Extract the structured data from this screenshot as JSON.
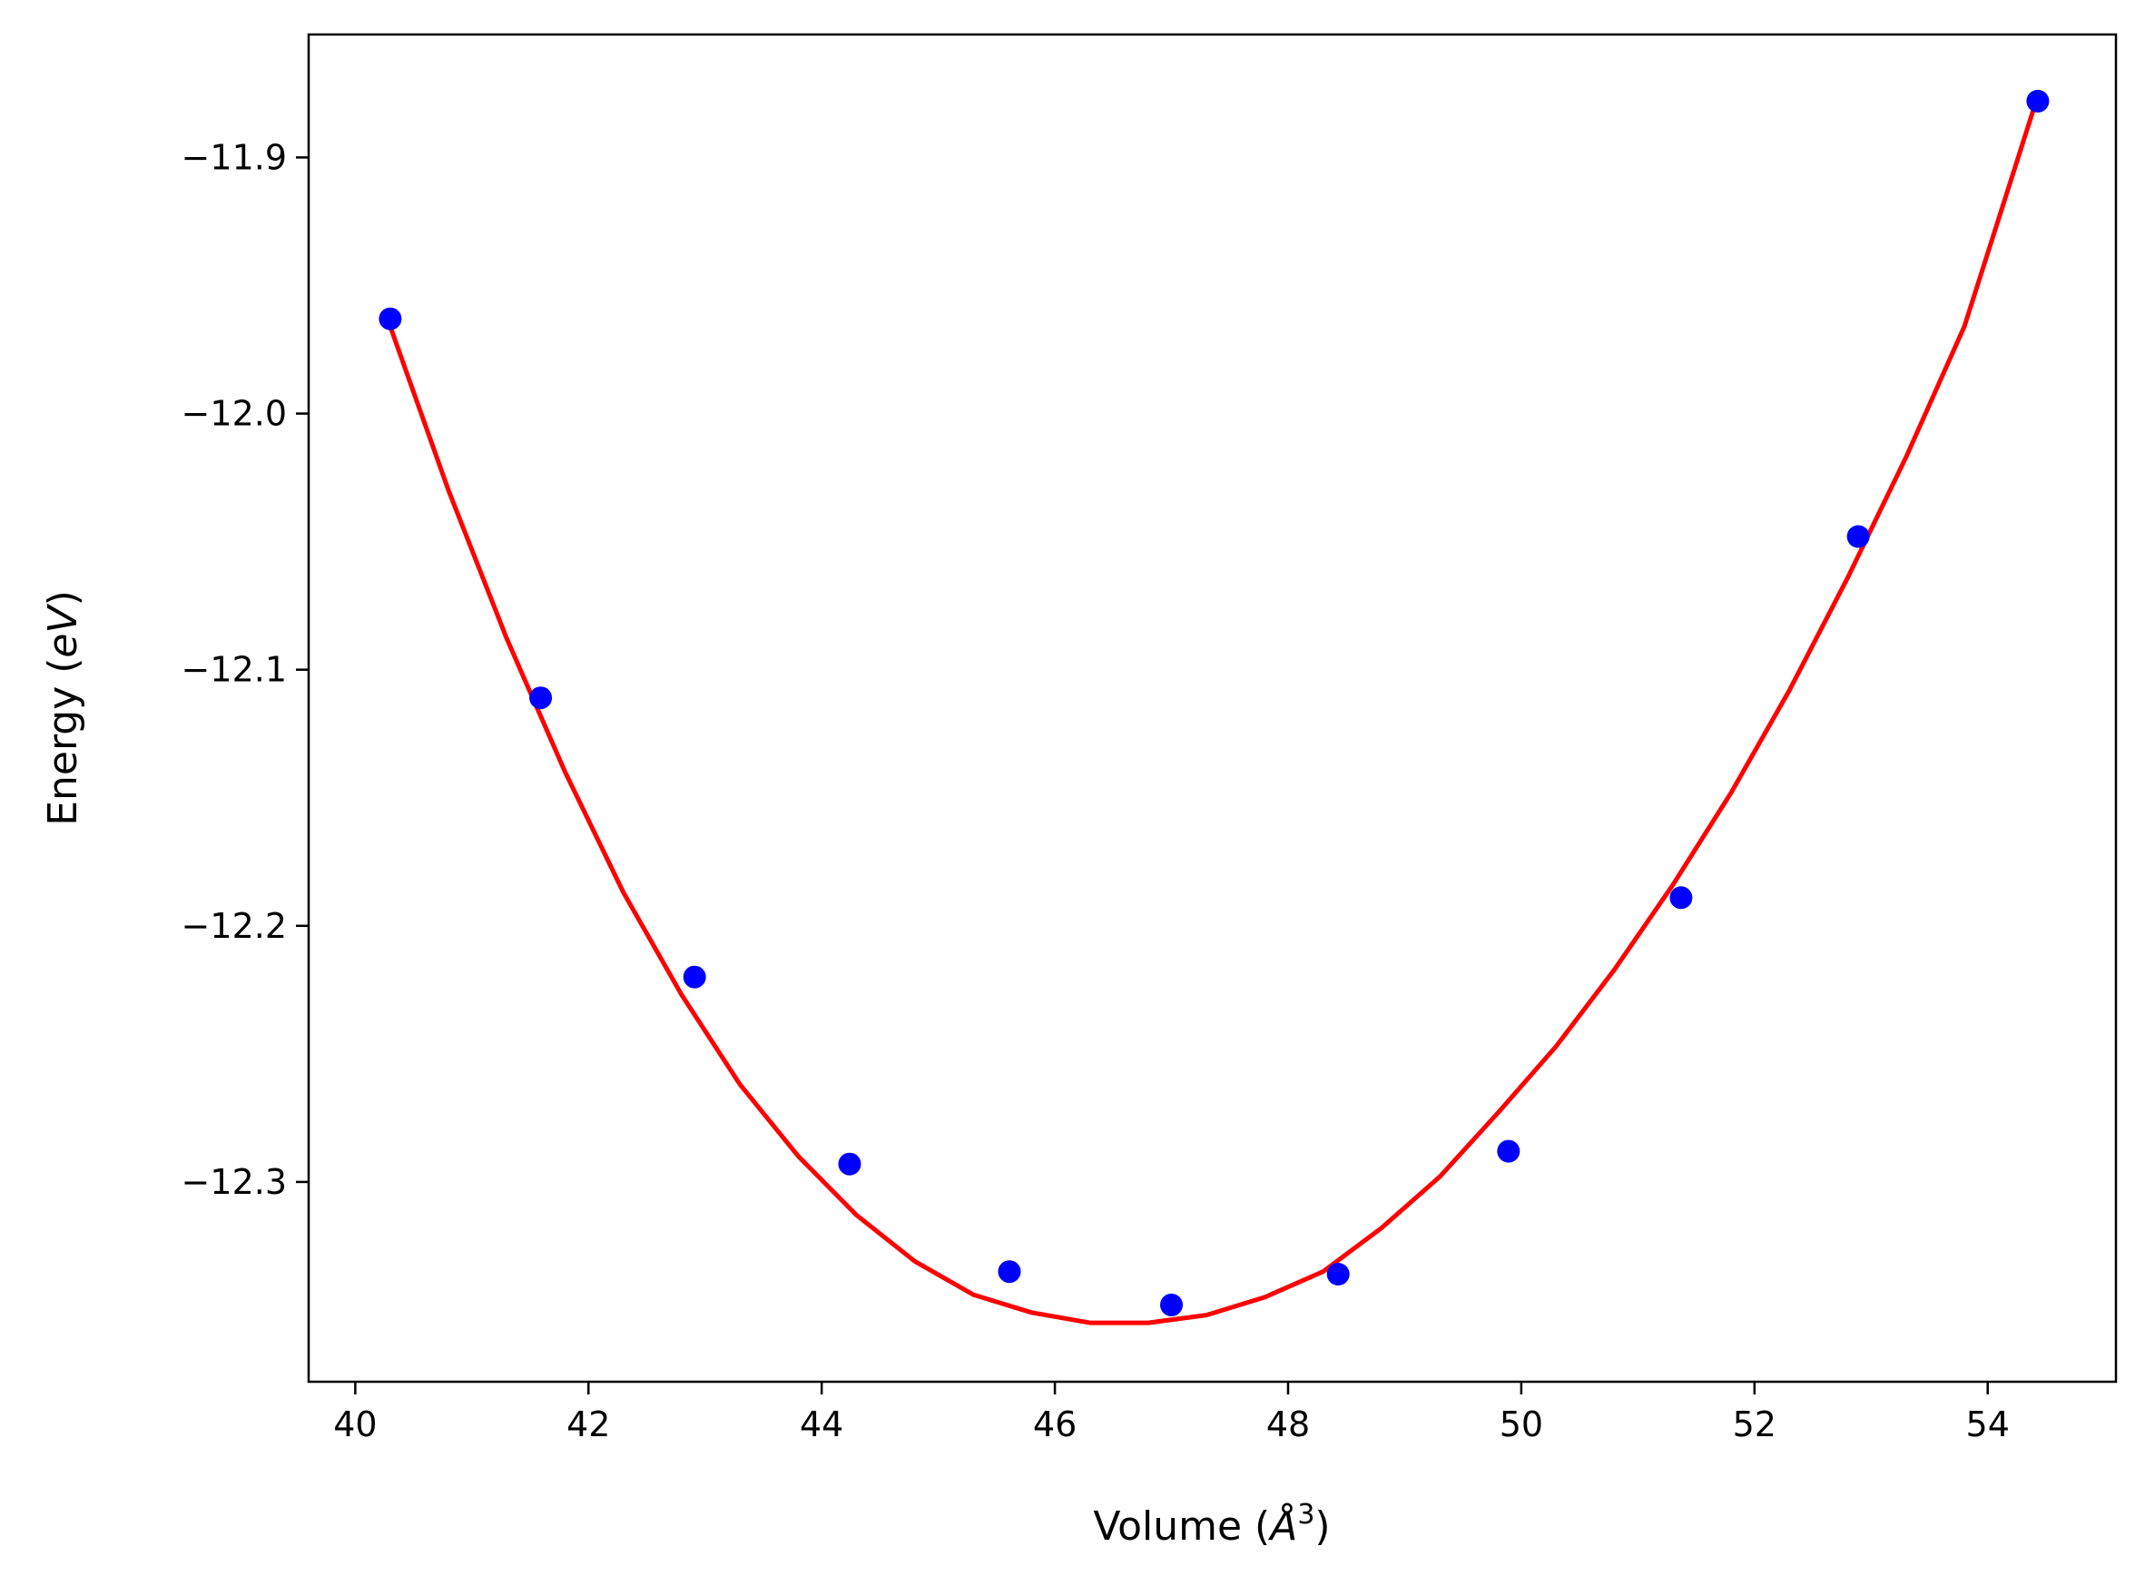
{
  "chart_data": {
    "type": "scatter",
    "title": "",
    "xlabel": {
      "prefix": "Volume (",
      "symbol": "Å",
      "power": "3",
      "suffix": ")"
    },
    "ylabel": {
      "prefix": "Energy (",
      "unit": "eV",
      "suffix": ")"
    },
    "xlim": [
      39.6,
      55.1
    ],
    "ylim": [
      -12.378,
      -11.852
    ],
    "xticks": [
      40,
      42,
      44,
      46,
      48,
      50,
      52,
      54
    ],
    "xtick_labels": [
      "40",
      "42",
      "44",
      "46",
      "48",
      "50",
      "52",
      "54"
    ],
    "yticks": [
      -11.9,
      -12.0,
      -12.1,
      -12.2,
      -12.3
    ],
    "ytick_labels": [
      "−11.9",
      "−12.0",
      "−12.1",
      "−12.2",
      "−12.3"
    ],
    "grid": false,
    "series": [
      {
        "kind": "points",
        "color": "#0000ff",
        "x": [
          40.3,
          41.59,
          42.91,
          44.24,
          45.61,
          47.0,
          48.43,
          49.89,
          51.37,
          52.89,
          54.43
        ],
        "y": [
          -11.963,
          -12.111,
          -12.22,
          -12.293,
          -12.335,
          -12.348,
          -12.336,
          -12.288,
          -12.189,
          -12.048,
          -11.878
        ]
      },
      {
        "kind": "fit-line",
        "color": "#ff0000",
        "x": [
          40.3,
          40.8,
          41.3,
          41.8,
          42.3,
          42.8,
          43.3,
          43.8,
          44.3,
          44.8,
          45.3,
          45.8,
          46.3,
          46.8,
          47.3,
          47.8,
          48.3,
          48.8,
          49.3,
          49.8,
          50.3,
          50.8,
          51.3,
          51.8,
          52.3,
          52.8,
          53.3,
          53.8,
          54.43
        ],
        "y": [
          -11.966,
          -12.03,
          -12.088,
          -12.14,
          -12.187,
          -12.227,
          -12.262,
          -12.29,
          -12.313,
          -12.331,
          -12.344,
          -12.351,
          -12.355,
          -12.355,
          -12.352,
          -12.345,
          -12.335,
          -12.318,
          -12.298,
          -12.273,
          -12.247,
          -12.217,
          -12.184,
          -12.148,
          -12.108,
          -12.064,
          -12.017,
          -11.966,
          -11.876
        ]
      }
    ]
  }
}
